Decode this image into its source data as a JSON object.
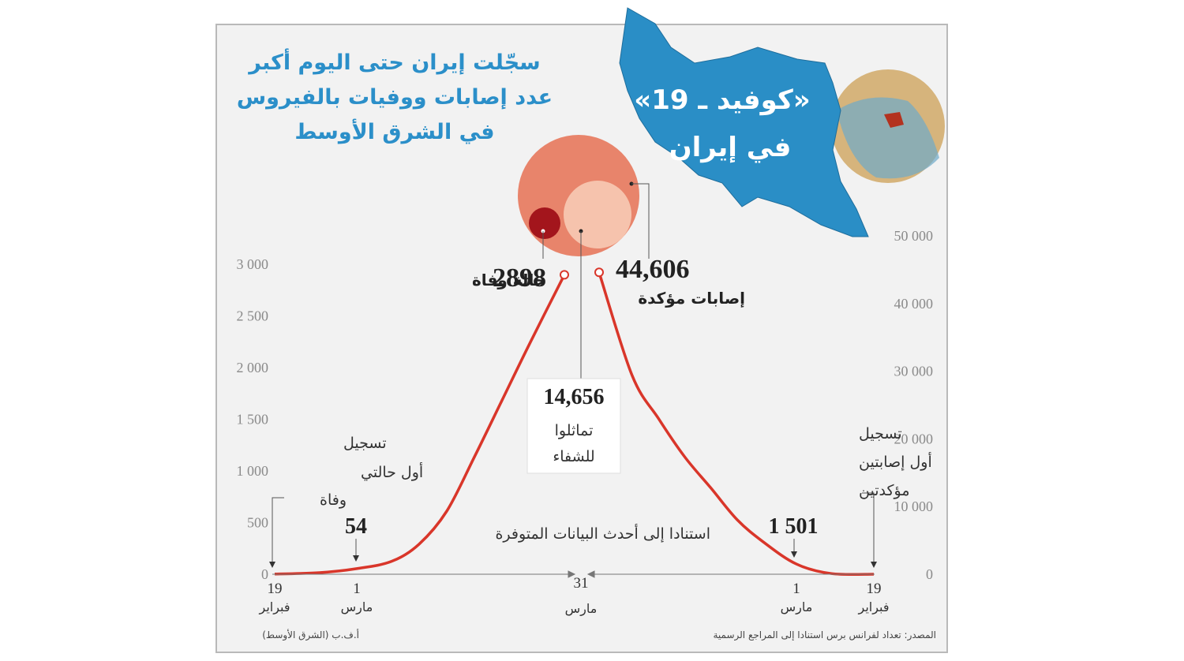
{
  "title_lines": [
    "سجّلت إيران حتى اليوم أكبر",
    "عدد إصابات ووفيات بالفيروس",
    "في الشرق الأوسط"
  ],
  "map_title": [
    "«كوفيد ـ 19»",
    "في إيران"
  ],
  "chart_data": {
    "type": "line",
    "left_axis": {
      "ticks": [
        "0",
        "500",
        "1 000",
        "1 500",
        "2 000",
        "2 500",
        "3 000"
      ],
      "ylim": [
        0,
        3000
      ]
    },
    "right_axis": {
      "ticks": [
        "0",
        "10 000",
        "20 000",
        "30 000",
        "40 000",
        "50 000"
      ],
      "ylim": [
        0,
        50000
      ]
    },
    "deaths_series": {
      "label": "حالة وفاة",
      "points": [
        [
          "2020-02-19",
          2
        ],
        [
          "2020-02-25",
          15
        ],
        [
          "2020-03-01",
          54
        ],
        [
          "2020-03-06",
          124
        ],
        [
          "2020-03-10",
          291
        ],
        [
          "2020-03-14",
          611
        ],
        [
          "2020-03-18",
          1135
        ],
        [
          "2020-03-22",
          1685
        ],
        [
          "2020-03-26",
          2234
        ],
        [
          "2020-03-31",
          2898
        ]
      ]
    },
    "cases_series": {
      "label": "إصابات مؤكدة",
      "points": [
        [
          "2020-02-19",
          2
        ],
        [
          "2020-02-25",
          95
        ],
        [
          "2020-03-01",
          1501
        ],
        [
          "2020-03-06",
          4747
        ],
        [
          "2020-03-10",
          8042
        ],
        [
          "2020-03-14",
          12729
        ],
        [
          "2020-03-18",
          17361
        ],
        [
          "2020-03-22",
          23049
        ],
        [
          "2020-03-26",
          29406
        ],
        [
          "2020-03-31",
          44606
        ]
      ]
    },
    "recovered": 14656,
    "x_ticks_left": [
      {
        "day": "19",
        "month": "فبراير"
      },
      {
        "day": "1",
        "month": "مارس"
      }
    ],
    "x_tick_center": {
      "day": "31",
      "month": "مارس"
    },
    "x_ticks_right": [
      {
        "day": "1",
        "month": "مارس"
      },
      {
        "day": "19",
        "month": "فبراير"
      }
    ]
  },
  "annotations": {
    "deaths_total": "2898",
    "deaths_label": "حالة وفاة",
    "cases_total": "44,606",
    "cases_label": "إصابات مؤكدة",
    "recovered_total": "14,656",
    "recovered_label": [
      "تماثلوا",
      "للشفاء"
    ],
    "deaths_march1": "54",
    "cases_march1": "1 501",
    "first_deaths": [
      "تسجيل",
      "أول حالتي",
      "وفاة"
    ],
    "first_cases": [
      "تسجيل",
      "أول إصابتين",
      "مؤكدتين"
    ],
    "latest_note": "استنادا إلى أحدث البيانات المتوفرة"
  },
  "footer": {
    "source": "المصدر: تعداد لفرانس برس استنادا إلى المراجع الرسمية",
    "credit": "أ.ف.ب (الشرق الأوسط)"
  },
  "colors": {
    "line": "#d9362a",
    "title": "#2b8fc9",
    "map": "#2a8ec6",
    "circle_cases": "#e8846b",
    "circle_recovered": "#f6c3ad",
    "circle_deaths": "#a3151c"
  }
}
